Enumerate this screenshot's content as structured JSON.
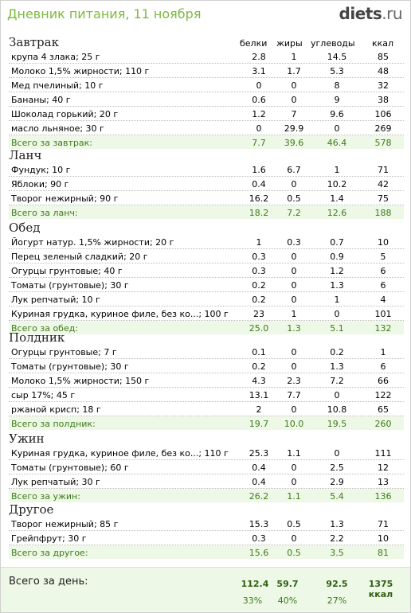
{
  "app": {
    "title": "Дневник питания, 11 ноября",
    "logo_main": "diets",
    "logo_tld": ".ru"
  },
  "columns": {
    "protein": "белки",
    "fat": "жиры",
    "carbs": "углеводы",
    "kcal": "ккал"
  },
  "sections": [
    {
      "title": "Завтрак",
      "rows": [
        [
          "крупа 4 злака; 25 г",
          "2.8",
          "1",
          "14.5",
          "85"
        ],
        [
          "Молоко 1,5% жирности; 110 г",
          "3.1",
          "1.7",
          "5.3",
          "48"
        ],
        [
          "Мед пчелиный; 10 г",
          "0",
          "0",
          "8",
          "32"
        ],
        [
          "Бананы; 40 г",
          "0.6",
          "0",
          "9",
          "38"
        ],
        [
          "Шоколад горький; 20 г",
          "1.2",
          "7",
          "9.6",
          "106"
        ],
        [
          "масло льняное; 30 г",
          "0",
          "29.9",
          "0",
          "269"
        ]
      ],
      "total": [
        "Всего за завтрак:",
        "7.7",
        "39.6",
        "46.4",
        "578"
      ]
    },
    {
      "title": "Ланч",
      "rows": [
        [
          "Фундук; 10 г",
          "1.6",
          "6.7",
          "1",
          "71"
        ],
        [
          "Яблоки; 90 г",
          "0.4",
          "0",
          "10.2",
          "42"
        ],
        [
          "Творог нежирный; 90 г",
          "16.2",
          "0.5",
          "1.4",
          "75"
        ]
      ],
      "total": [
        "Всего за ланч:",
        "18.2",
        "7.2",
        "12.6",
        "188"
      ]
    },
    {
      "title": "Обед",
      "rows": [
        [
          "Йогурт натур. 1,5% жирности; 20 г",
          "1",
          "0.3",
          "0.7",
          "10"
        ],
        [
          "Перец зеленый сладкий; 20 г",
          "0.3",
          "0",
          "0.9",
          "5"
        ],
        [
          "Огурцы грунтовые; 40 г",
          "0.3",
          "0",
          "1.2",
          "6"
        ],
        [
          "Томаты (грунтовые); 30 г",
          "0.2",
          "0",
          "1.3",
          "6"
        ],
        [
          "Лук репчатый; 10 г",
          "0.2",
          "0",
          "1",
          "4"
        ],
        [
          "Куриная грудка, куриное филе, без ко...; 100 г",
          "23",
          "1",
          "0",
          "101"
        ]
      ],
      "total": [
        "Всего за обед:",
        "25.0",
        "1.3",
        "5.1",
        "132"
      ]
    },
    {
      "title": "Полдник",
      "rows": [
        [
          "Огурцы грунтовые; 7 г",
          "0.1",
          "0",
          "0.2",
          "1"
        ],
        [
          "Томаты (грунтовые); 30 г",
          "0.2",
          "0",
          "1.3",
          "6"
        ],
        [
          "Молоко 1,5% жирности; 150 г",
          "4.3",
          "2.3",
          "7.2",
          "66"
        ],
        [
          "сыр 17%; 45 г",
          "13.1",
          "7.7",
          "0",
          "122"
        ],
        [
          "ржаной крисп; 18 г",
          "2",
          "0",
          "10.8",
          "65"
        ]
      ],
      "total": [
        "Всего за полдник:",
        "19.7",
        "10.0",
        "19.5",
        "260"
      ]
    },
    {
      "title": "Ужин",
      "rows": [
        [
          "Куриная грудка, куриное филе, без ко...; 110 г",
          "25.3",
          "1.1",
          "0",
          "111"
        ],
        [
          "Томаты (грунтовые); 60 г",
          "0.4",
          "0",
          "2.5",
          "12"
        ],
        [
          "Лук репчатый; 30 г",
          "0.4",
          "0",
          "2.9",
          "13"
        ]
      ],
      "total": [
        "Всего за ужин:",
        "26.2",
        "1.1",
        "5.4",
        "136"
      ]
    },
    {
      "title": "Другое",
      "rows": [
        [
          "Творог нежирный; 85 г",
          "15.3",
          "0.5",
          "1.3",
          "71"
        ],
        [
          "Грейпфрут; 30 г",
          "0.3",
          "0",
          "2.2",
          "10"
        ]
      ],
      "total": [
        "Всего за другое:",
        "15.6",
        "0.5",
        "3.5",
        "81"
      ]
    }
  ],
  "day": {
    "label": "Всего за день:",
    "protein": "112.4",
    "fat": "59.7",
    "carbs": "92.5",
    "kcal": "1375 ккал",
    "protein_pct": "33%",
    "fat_pct": "40%",
    "carbs_pct": "27%"
  }
}
